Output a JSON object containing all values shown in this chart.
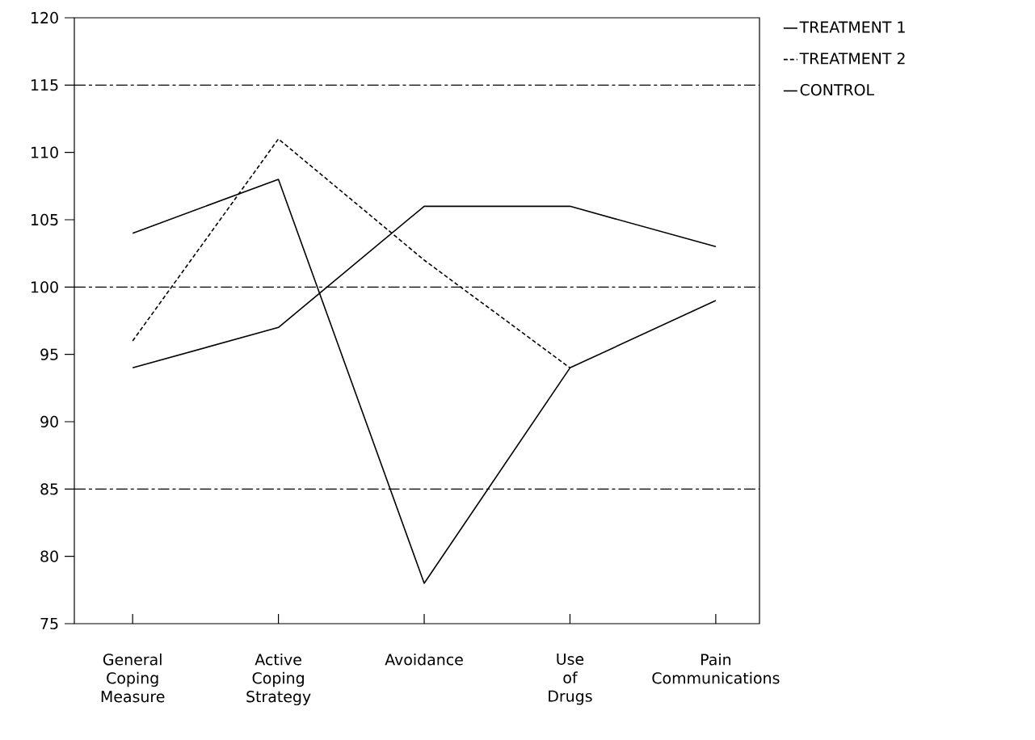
{
  "chart_data": {
    "type": "line",
    "categories": [
      "General Coping Measure",
      "Active Coping Strategy",
      "Avoidance",
      "Use of Drugs",
      "Pain Communications"
    ],
    "series": [
      {
        "name": "TREATMENT 1",
        "color": "#000000",
        "line_style": "solid",
        "values": [
          104,
          108,
          78,
          94,
          99
        ]
      },
      {
        "name": "TREATMENT 2",
        "color": "#000000",
        "line_style": "dashed",
        "values": [
          96,
          111,
          102,
          94,
          null
        ]
      },
      {
        "name": "CONTROL",
        "color": "#000000",
        "line_style": "solid",
        "values": [
          94,
          97,
          106,
          106,
          103
        ]
      }
    ],
    "ylim": [
      75,
      120
    ],
    "yticks": [
      75,
      80,
      85,
      90,
      95,
      100,
      105,
      110,
      115,
      120
    ],
    "ref_lines": [
      {
        "axis": "y",
        "value": 115,
        "line_style": "dashed"
      },
      {
        "axis": "y",
        "value": 100,
        "line_style": "dashed"
      },
      {
        "axis": "y",
        "value": 85,
        "line_style": "dashed"
      }
    ],
    "legend": "right",
    "grid": false,
    "marker": "none"
  }
}
